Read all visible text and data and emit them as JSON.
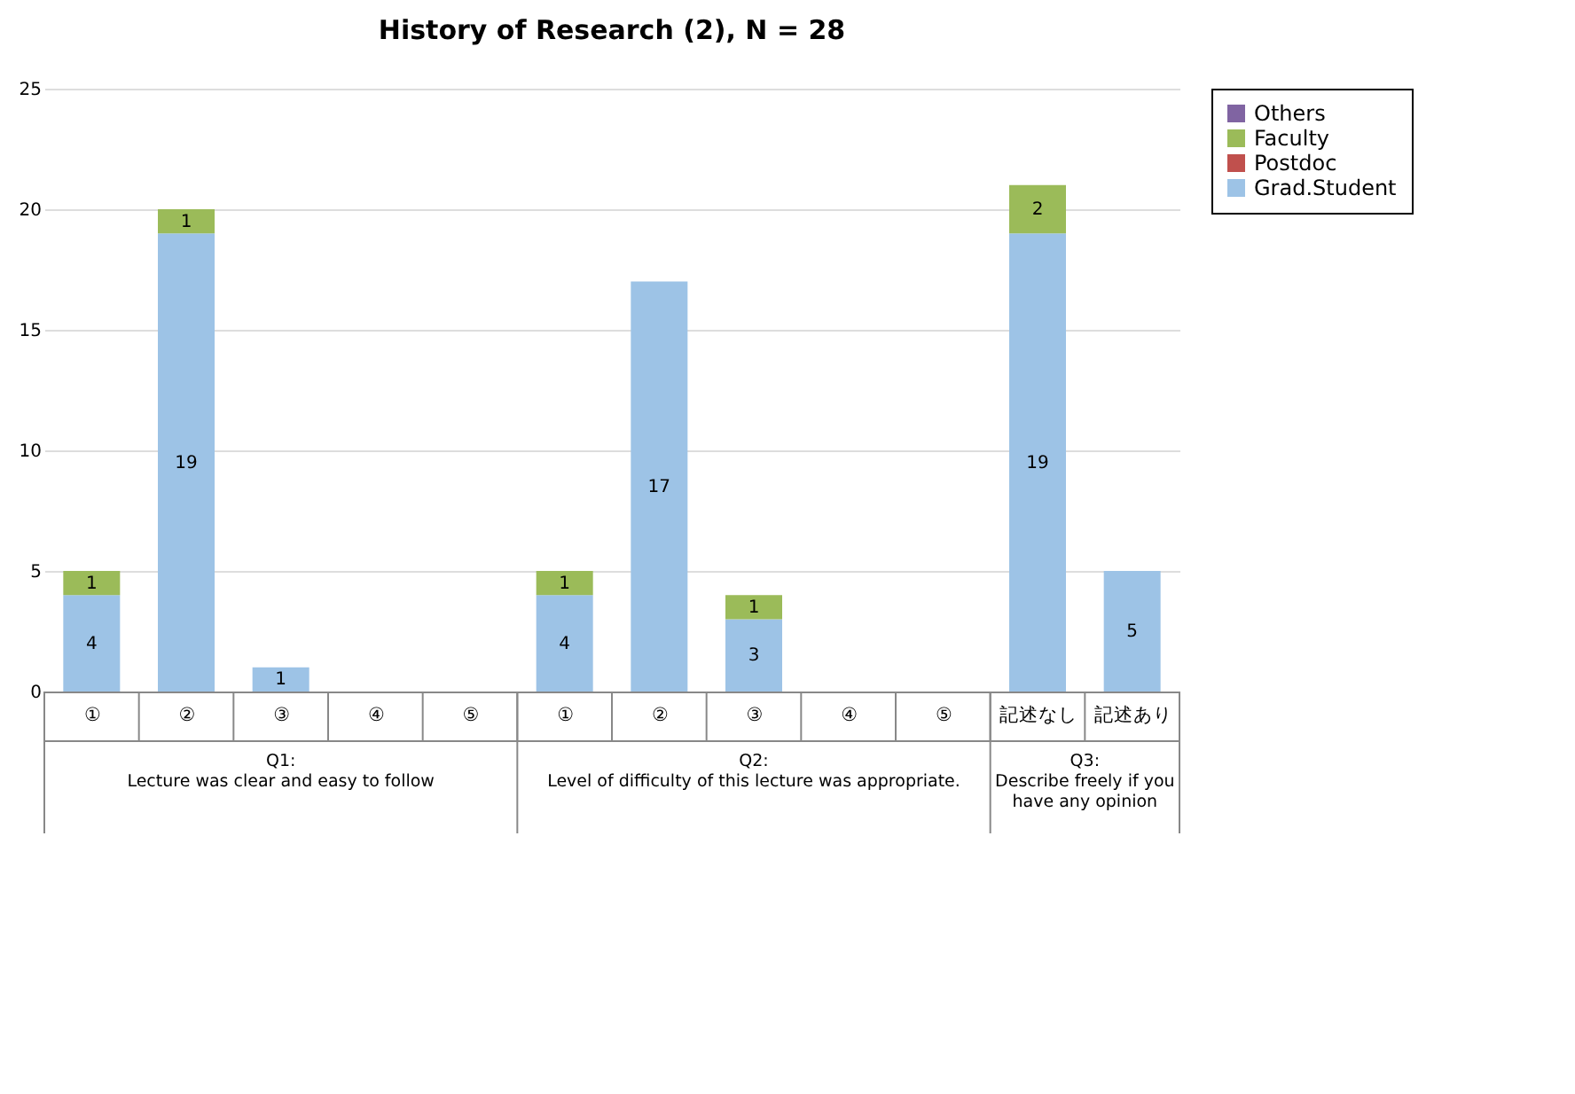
{
  "chart_data": {
    "type": "bar",
    "title": "History of Research (2),  N = 28",
    "stacked": true,
    "categories": [
      "①",
      "②",
      "③",
      "④",
      "⑤",
      "①",
      "②",
      "③",
      "④",
      "⑤",
      "記述なし",
      "記述あり"
    ],
    "series": [
      {
        "name": "Grad.Student",
        "color": "#9dc3e6",
        "values": [
          4,
          19,
          1,
          0,
          0,
          4,
          17,
          3,
          0,
          0,
          19,
          5
        ],
        "value_labels": [
          "4",
          "19",
          "1",
          null,
          null,
          "4",
          "17",
          "3",
          null,
          null,
          "19",
          "5"
        ]
      },
      {
        "name": "Postdoc",
        "color": "#c0504d",
        "values": [
          0,
          0,
          0,
          0,
          0,
          0,
          0,
          0,
          0,
          0,
          0,
          0
        ],
        "value_labels": [
          null,
          null,
          null,
          null,
          null,
          null,
          null,
          null,
          null,
          null,
          null,
          null
        ]
      },
      {
        "name": "Faculty",
        "color": "#9bbb59",
        "values": [
          1,
          1,
          0,
          0,
          0,
          1,
          0,
          1,
          0,
          0,
          2,
          0
        ],
        "value_labels": [
          "1",
          "1",
          null,
          null,
          null,
          "1",
          null,
          "1",
          null,
          null,
          "2",
          null
        ]
      },
      {
        "name": "Others",
        "color": "#8064a2",
        "values": [
          0,
          0,
          0,
          0,
          0,
          0,
          0,
          0,
          0,
          0,
          0,
          0
        ],
        "value_labels": [
          null,
          null,
          null,
          null,
          null,
          null,
          null,
          null,
          null,
          null,
          null,
          null
        ]
      }
    ],
    "ylim": [
      0,
      25
    ],
    "yticks": [
      0,
      5,
      10,
      15,
      20,
      25
    ],
    "grid": "y",
    "legend": "top right",
    "annotations": [
      "Q1:\nLecture was clear and easy to follow",
      "Q2:\nLevel of difficulty of this lecture was appropriate.",
      "Q3:\nDescribe freely if you\nhave any opinion"
    ]
  }
}
